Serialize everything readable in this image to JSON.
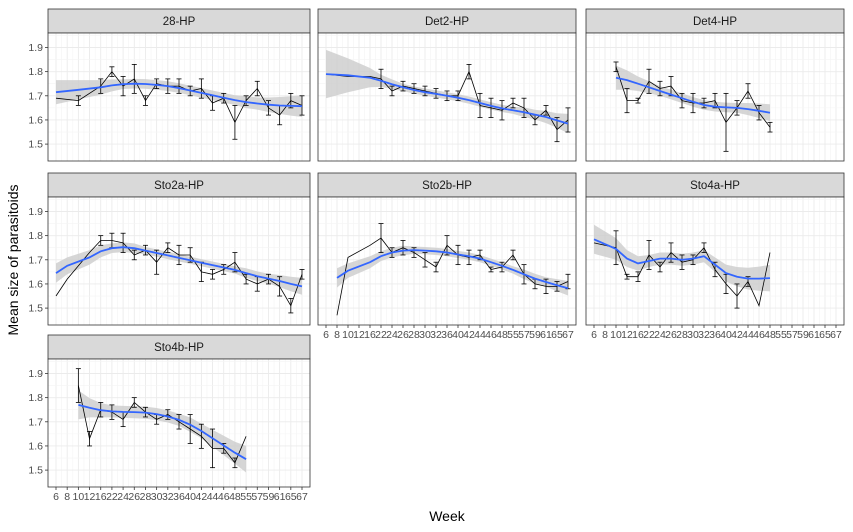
{
  "chart_data": {
    "type": "line",
    "xlabel": "Week",
    "ylabel": "Mean size of parasitoids",
    "x_ticks": [
      6,
      8,
      10,
      12,
      16,
      22,
      24,
      26,
      28,
      30,
      32,
      36,
      40,
      42,
      44,
      46,
      48,
      55,
      57,
      59,
      61,
      65,
      67
    ],
    "x_tick_labels": [
      "6",
      "8",
      "10",
      "12",
      "16",
      "22",
      "24",
      "26",
      "28",
      "30",
      "32",
      "36",
      "40",
      "42",
      "44",
      "46",
      "48",
      "55",
      "57",
      "59",
      "61",
      "65",
      "67"
    ],
    "y_ticks": [
      1.5,
      1.6,
      1.7,
      1.8,
      1.9
    ],
    "y_tick_labels": [
      "1.5",
      "1.6",
      "1.7",
      "1.8",
      "1.9"
    ],
    "grid": true,
    "colors": {
      "smooth": "#3366ff",
      "ribbon": "#cccccc",
      "observed": "#000000",
      "strip_fill": "#d9d9d9",
      "grid": "#ebebeb"
    },
    "panels": [
      {
        "title": "28-HP",
        "x": [
          6,
          10,
          16,
          22,
          24,
          26,
          28,
          30,
          32,
          36,
          40,
          42,
          44,
          46,
          48,
          55,
          57,
          59,
          61,
          65,
          67
        ],
        "y": [
          1.69,
          1.68,
          1.74,
          1.8,
          1.74,
          1.77,
          1.68,
          1.75,
          1.74,
          1.74,
          1.72,
          1.73,
          1.67,
          1.69,
          1.59,
          1.68,
          1.73,
          1.65,
          1.62,
          1.68,
          1.66
        ],
        "err": [
          0,
          0.02,
          0.03,
          0.02,
          0.04,
          0.06,
          0.02,
          0.02,
          0.03,
          0.03,
          0.02,
          0.04,
          0.03,
          0.02,
          0.07,
          0.02,
          0.03,
          0.03,
          0.04,
          0.03,
          0.04
        ],
        "smooth": [
          1.715,
          1.725,
          1.735,
          1.743,
          1.748,
          1.75,
          1.749,
          1.745,
          1.74,
          1.732,
          1.722,
          1.712,
          1.702,
          1.692,
          1.682,
          1.674,
          1.668,
          1.663,
          1.66,
          1.658,
          1.657
        ],
        "smooth_se": [
          0.05,
          0.04,
          0.03,
          0.025,
          0.02,
          0.02,
          0.02,
          0.02,
          0.02,
          0.02,
          0.02,
          0.02,
          0.02,
          0.02,
          0.02,
          0.025,
          0.025,
          0.03,
          0.035,
          0.04,
          0.045
        ]
      },
      {
        "title": "Det2-HP",
        "x": [
          6,
          10,
          16,
          22,
          24,
          26,
          28,
          30,
          32,
          36,
          40,
          42,
          44,
          46,
          48,
          55,
          57,
          59,
          61,
          65,
          67
        ],
        "y": [
          1.79,
          1.78,
          1.78,
          1.77,
          1.72,
          1.74,
          1.73,
          1.72,
          1.71,
          1.7,
          1.7,
          1.8,
          1.66,
          1.65,
          1.64,
          1.67,
          1.65,
          1.6,
          1.64,
          1.56,
          1.6
        ],
        "err": [
          0,
          0,
          0,
          0.04,
          0.02,
          0.02,
          0.02,
          0.02,
          0.02,
          0.02,
          0.02,
          0.03,
          0.05,
          0.04,
          0.04,
          0.02,
          0.04,
          0.02,
          0.02,
          0.05,
          0.05
        ],
        "smooth": [
          1.79,
          1.785,
          1.775,
          1.762,
          1.748,
          1.735,
          1.724,
          1.715,
          1.708,
          1.7,
          1.692,
          1.682,
          1.67,
          1.658,
          1.648,
          1.64,
          1.632,
          1.622,
          1.612,
          1.598,
          1.585
        ],
        "smooth_se": [
          0.1,
          0.07,
          0.04,
          0.025,
          0.02,
          0.015,
          0.015,
          0.015,
          0.015,
          0.015,
          0.015,
          0.015,
          0.015,
          0.015,
          0.015,
          0.015,
          0.02,
          0.02,
          0.025,
          0.03,
          0.04
        ]
      },
      {
        "title": "Det4-HP",
        "x": [
          10,
          12,
          16,
          22,
          24,
          26,
          28,
          30,
          32,
          36,
          40,
          42,
          44,
          46,
          48
        ],
        "y": [
          1.82,
          1.68,
          1.68,
          1.76,
          1.73,
          1.74,
          1.68,
          1.67,
          1.67,
          1.68,
          1.59,
          1.65,
          1.72,
          1.63,
          1.57
        ],
        "err": [
          0.02,
          0.05,
          0.01,
          0.05,
          0.03,
          0.04,
          0.03,
          0.04,
          0.02,
          0.03,
          0.12,
          0.03,
          0.03,
          0.03,
          0.02
        ],
        "smooth": [
          1.775,
          1.765,
          1.75,
          1.735,
          1.72,
          1.705,
          1.69,
          1.675,
          1.662,
          1.655,
          1.652,
          1.65,
          1.645,
          1.638,
          1.63
        ],
        "smooth_se": [
          0.05,
          0.04,
          0.03,
          0.025,
          0.02,
          0.02,
          0.02,
          0.02,
          0.02,
          0.02,
          0.02,
          0.02,
          0.025,
          0.03,
          0.035
        ]
      },
      {
        "title": "Sto2a-HP",
        "x": [
          6,
          8,
          12,
          16,
          22,
          24,
          26,
          28,
          30,
          32,
          36,
          40,
          42,
          44,
          46,
          48,
          55,
          57,
          59,
          61,
          65,
          67
        ],
        "y": [
          1.55,
          1.62,
          1.73,
          1.78,
          1.78,
          1.77,
          1.72,
          1.74,
          1.69,
          1.75,
          1.72,
          1.72,
          1.65,
          1.64,
          1.66,
          1.69,
          1.62,
          1.6,
          1.62,
          1.59,
          1.51,
          1.64
        ],
        "err": [
          0,
          0,
          0,
          0.02,
          0.03,
          0.04,
          0.02,
          0.02,
          0.05,
          0.02,
          0.04,
          0.03,
          0.04,
          0.02,
          0.02,
          0.04,
          0.02,
          0.03,
          0.02,
          0.04,
          0.03,
          0.02
        ],
        "smooth": [
          1.645,
          1.675,
          1.71,
          1.735,
          1.748,
          1.752,
          1.748,
          1.738,
          1.728,
          1.718,
          1.708,
          1.698,
          1.688,
          1.678,
          1.668,
          1.658,
          1.645,
          1.632,
          1.622,
          1.612,
          1.6,
          1.59
        ],
        "smooth_se": [
          0.04,
          0.035,
          0.03,
          0.025,
          0.02,
          0.02,
          0.02,
          0.015,
          0.015,
          0.015,
          0.015,
          0.015,
          0.015,
          0.015,
          0.015,
          0.015,
          0.02,
          0.02,
          0.02,
          0.025,
          0.03,
          0.035
        ]
      },
      {
        "title": "Sto2b-HP",
        "x": [
          8,
          10,
          16,
          22,
          24,
          26,
          28,
          30,
          32,
          36,
          40,
          42,
          44,
          46,
          48,
          55,
          57,
          59,
          61,
          65,
          67
        ],
        "y": [
          1.47,
          1.71,
          1.76,
          1.79,
          1.73,
          1.75,
          1.73,
          1.7,
          1.67,
          1.76,
          1.72,
          1.71,
          1.72,
          1.66,
          1.67,
          1.72,
          1.64,
          1.6,
          1.59,
          1.59,
          1.61
        ],
        "err": [
          0,
          0,
          0,
          0.06,
          0.02,
          0.03,
          0.02,
          0.03,
          0.02,
          0.04,
          0.04,
          0.03,
          0.02,
          0.01,
          0.02,
          0.02,
          0.04,
          0.02,
          0.03,
          0.02,
          0.03
        ],
        "smooth": [
          1.625,
          1.655,
          1.69,
          1.715,
          1.73,
          1.738,
          1.74,
          1.738,
          1.735,
          1.73,
          1.722,
          1.715,
          1.705,
          1.69,
          1.675,
          1.658,
          1.64,
          1.622,
          1.608,
          1.595,
          1.582
        ],
        "smooth_se": [
          0.04,
          0.03,
          0.025,
          0.02,
          0.02,
          0.02,
          0.015,
          0.015,
          0.015,
          0.015,
          0.015,
          0.015,
          0.015,
          0.015,
          0.015,
          0.015,
          0.02,
          0.02,
          0.02,
          0.025,
          0.03
        ]
      },
      {
        "title": "Sto4a-HP",
        "x": [
          6,
          10,
          12,
          16,
          22,
          24,
          26,
          28,
          30,
          32,
          36,
          40,
          42,
          44,
          46,
          48
        ],
        "y": [
          1.77,
          1.75,
          1.63,
          1.63,
          1.72,
          1.67,
          1.73,
          1.69,
          1.7,
          1.75,
          1.66,
          1.6,
          1.55,
          1.61,
          1.51,
          1.73
        ],
        "err": [
          0,
          0.07,
          0.01,
          0.02,
          0.06,
          0.02,
          0.04,
          0.03,
          0.02,
          0.02,
          0.03,
          0.04,
          0.05,
          0.02,
          0,
          0
        ],
        "smooth": [
          1.785,
          1.745,
          1.705,
          1.685,
          1.695,
          1.705,
          1.705,
          1.7,
          1.705,
          1.715,
          1.68,
          1.645,
          1.63,
          1.622,
          1.622,
          1.624
        ],
        "smooth_se": [
          0.06,
          0.045,
          0.035,
          0.03,
          0.025,
          0.025,
          0.025,
          0.025,
          0.025,
          0.025,
          0.03,
          0.035,
          0.04,
          0.045,
          0.05,
          0.055
        ]
      },
      {
        "title": "Sto4b-HP",
        "x": [
          10,
          12,
          16,
          22,
          24,
          26,
          28,
          30,
          32,
          36,
          40,
          42,
          44,
          46,
          48,
          55
        ],
        "y": [
          1.85,
          1.63,
          1.75,
          1.74,
          1.71,
          1.78,
          1.74,
          1.71,
          1.73,
          1.7,
          1.67,
          1.64,
          1.59,
          1.59,
          1.53,
          1.64
        ],
        "err": [
          0.07,
          0.03,
          0.03,
          0.03,
          0.03,
          0.02,
          0.02,
          0.02,
          0.02,
          0.03,
          0.06,
          0.05,
          0.08,
          0.02,
          0.02,
          0
        ],
        "smooth": [
          1.77,
          1.758,
          1.748,
          1.743,
          1.741,
          1.74,
          1.738,
          1.732,
          1.722,
          1.708,
          1.688,
          1.662,
          1.632,
          1.602,
          1.572,
          1.545
        ],
        "smooth_se": [
          0.06,
          0.04,
          0.03,
          0.025,
          0.025,
          0.025,
          0.025,
          0.025,
          0.025,
          0.025,
          0.03,
          0.03,
          0.035,
          0.04,
          0.045,
          0.055
        ]
      }
    ]
  }
}
